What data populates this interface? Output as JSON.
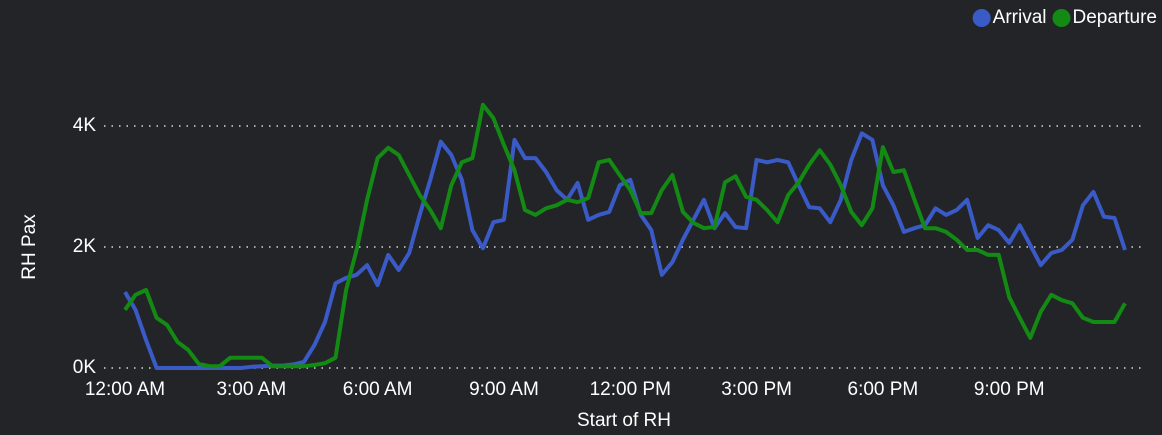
{
  "chart_data": {
    "type": "line",
    "xlabel": "Start of RH",
    "ylabel": "RH Pax",
    "x": [
      0,
      0.25,
      0.5,
      0.75,
      1,
      1.25,
      1.5,
      1.75,
      2,
      2.25,
      2.5,
      2.75,
      3,
      3.25,
      3.5,
      3.75,
      4,
      4.25,
      4.5,
      4.75,
      5,
      5.25,
      5.5,
      5.75,
      6,
      6.25,
      6.5,
      6.75,
      7,
      7.25,
      7.5,
      7.75,
      8,
      8.25,
      8.5,
      8.75,
      9,
      9.25,
      9.5,
      9.75,
      10,
      10.25,
      10.5,
      10.75,
      11,
      11.25,
      11.5,
      11.75,
      12,
      12.25,
      12.5,
      12.75,
      13,
      13.25,
      13.5,
      13.75,
      14,
      14.25,
      14.5,
      14.75,
      15,
      15.25,
      15.5,
      15.75,
      16,
      16.25,
      16.5,
      16.75,
      17,
      17.25,
      17.5,
      17.75,
      18,
      18.25,
      18.5,
      18.75,
      19,
      19.25,
      19.5,
      19.75,
      20,
      20.25,
      20.5,
      20.75,
      21,
      21.25,
      21.5,
      21.75,
      22,
      22.25,
      22.5,
      22.75,
      23,
      23.25,
      23.5,
      23.75
    ],
    "series": [
      {
        "name": "Arrival",
        "color": "#3a5bc7",
        "values": [
          1256,
          960,
          460,
          0,
          0,
          0,
          0,
          0,
          0,
          0,
          0,
          0,
          20,
          30,
          40,
          40,
          60,
          100,
          380,
          760,
          1400,
          1490,
          1540,
          1700,
          1370,
          1870,
          1620,
          1900,
          2530,
          3110,
          3740,
          3520,
          3110,
          2280,
          1980,
          2410,
          2450,
          3770,
          3470,
          3470,
          3240,
          2940,
          2780,
          3060,
          2450,
          2530,
          2580,
          3020,
          3110,
          2530,
          2280,
          1540,
          1750,
          2120,
          2450,
          2780,
          2310,
          2560,
          2330,
          2310,
          3440,
          3400,
          3440,
          3400,
          3020,
          2660,
          2640,
          2410,
          2780,
          3440,
          3880,
          3770,
          3020,
          2690,
          2250,
          2310,
          2360,
          2640,
          2530,
          2610,
          2780,
          2150,
          2360,
          2280,
          2070,
          2360,
          2030,
          1700,
          1900,
          1950,
          2120,
          2690,
          2910,
          2500,
          2480,
          1950
        ]
      },
      {
        "name": "Departure",
        "color": "#138a13",
        "values": [
          960,
          1210,
          1290,
          830,
          710,
          430,
          300,
          70,
          30,
          30,
          170,
          170,
          170,
          170,
          30,
          30,
          30,
          30,
          50,
          80,
          170,
          1290,
          1950,
          2780,
          3470,
          3640,
          3520,
          3190,
          2860,
          2610,
          2310,
          3020,
          3400,
          3470,
          4350,
          4130,
          3690,
          3270,
          2610,
          2530,
          2640,
          2690,
          2780,
          2740,
          2810,
          3400,
          3440,
          3190,
          2940,
          2560,
          2560,
          2940,
          3190,
          2580,
          2400,
          2310,
          2330,
          3070,
          3170,
          2830,
          2780,
          2610,
          2410,
          2860,
          3070,
          3360,
          3600,
          3360,
          3020,
          2580,
          2360,
          2640,
          3650,
          3240,
          3270,
          2780,
          2310,
          2310,
          2250,
          2120,
          1950,
          1950,
          1870,
          1870,
          1170,
          830,
          500,
          930,
          1210,
          1120,
          1070,
          830,
          760,
          760,
          760,
          1070
        ]
      }
    ],
    "xlim": [
      0,
      23.75
    ],
    "xticks": [
      {
        "value": 0,
        "label": "12:00 AM"
      },
      {
        "value": 3,
        "label": "3:00 AM"
      },
      {
        "value": 6,
        "label": "6:00 AM"
      },
      {
        "value": 9,
        "label": "9:00 AM"
      },
      {
        "value": 12,
        "label": "12:00 PM"
      },
      {
        "value": 15,
        "label": "3:00 PM"
      },
      {
        "value": 18,
        "label": "6:00 PM"
      },
      {
        "value": 21,
        "label": "9:00 PM"
      }
    ],
    "ylim": [
      0,
      4400
    ],
    "yticks": [
      {
        "value": 0,
        "label": "0K"
      },
      {
        "value": 2000,
        "label": "2K"
      },
      {
        "value": 4000,
        "label": "4K"
      }
    ],
    "grid": true,
    "legend": "top-right"
  }
}
